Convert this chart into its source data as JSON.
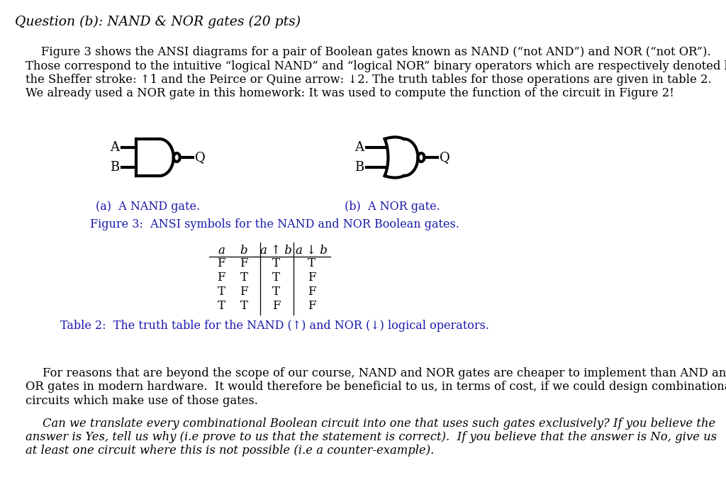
{
  "title": "Question (b): NAND & NOR gates (20 pts)",
  "bg_color": "#ffffff",
  "text_color": "#000000",
  "blue_color": "#1a1aaa",
  "body_text_1": "Figure 3 shows the ANSI diagrams for a pair of Boolean gates known as NAND (“not AND”) and NOR (“not OR”).",
  "body_text_2": "Those correspond to the intuitive “logical NAND” and “logical NOR” binary operators which are respectively denoted by",
  "body_text_3": "the Sheffer stroke: ↑1 and the Peirce or Quine arrow: ↓2. The truth tables for those operations are given in table 2.",
  "body_text_4": "We already used a NOR gate in this homework: It was used to compute the function of the circuit in Figure 2!",
  "nand_label": "(a)  A NAND gate.",
  "nor_label": "(b)  A NOR gate.",
  "fig_caption": "Figure 3:  ANSI symbols for the NAND and NOR Boolean gates.",
  "table_headers_italic": [
    "a",
    "b",
    "a ↑ b",
    "a ↓ b"
  ],
  "table_rows": [
    [
      "F",
      "F",
      "T",
      "T"
    ],
    [
      "F",
      "T",
      "T",
      "F"
    ],
    [
      "T",
      "F",
      "T",
      "F"
    ],
    [
      "T",
      "T",
      "F",
      "F"
    ]
  ],
  "table_caption": "Table 2:  The truth table for the NAND (↑) and NOR (↓) logical operators.",
  "footer_text_1": "For reasons that are beyond the scope of our course, NAND and NOR gates are cheaper to implement than AND and",
  "footer_text_2": "OR gates in modern hardware.  It would therefore be beneficial to us, in terms of cost, if we could design combinational",
  "footer_text_3": "circuits which make use of those gates.",
  "footer_italic_q": "Can we translate every combinational Boolean circuit into one that uses such gates exclusively?",
  "footer_text_4a": "answer is ",
  "footer_text_4b": "Yes",
  "footer_text_4c": ", tell us why (i.e ",
  "footer_text_4d": "prove",
  "footer_text_4e": " to us that the statement is correct).  If you believe that the answer is ",
  "footer_text_4f": "No",
  "footer_text_4g": ", give us",
  "footer_text_5": "at least one circuit where this is not possible (i.e a ",
  "footer_text_5b": "counter-example",
  "footer_text_5c": ")."
}
